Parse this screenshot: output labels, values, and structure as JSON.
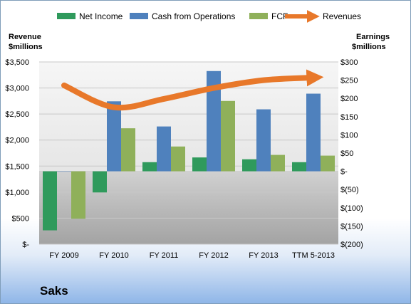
{
  "chart_data": {
    "type": "bar",
    "title": "Saks",
    "categories": [
      "FY 2009",
      "FY 2010",
      "FY 2011",
      "FY 2012",
      "FY 2013",
      "TTM 5-2013"
    ],
    "left_axis": {
      "label_lines": [
        "Revenue",
        "$millions"
      ],
      "ylim": [
        0,
        3500
      ],
      "ticks": [
        0,
        500,
        1000,
        1500,
        2000,
        2500,
        3000,
        3500
      ],
      "tick_labels": [
        "$-",
        "$500",
        "$1,000",
        "$1,500",
        "$2,000",
        "$2,500",
        "$3,000",
        "$3,500"
      ]
    },
    "right_axis": {
      "label_lines": [
        "Earnings",
        "$millions"
      ],
      "ylim": [
        -200,
        300
      ],
      "ticks": [
        -200,
        -150,
        -100,
        -50,
        0,
        50,
        100,
        150,
        200,
        250,
        300
      ],
      "tick_labels": [
        "$(200)",
        "$(150)",
        "$(100)",
        "$(50)",
        "$-",
        "$50",
        "$100",
        "$150",
        "$200",
        "$250",
        "$300"
      ]
    },
    "series": [
      {
        "name": "Net Income",
        "axis": "right",
        "kind": "bar",
        "color": "#2f9a5c",
        "values": [
          -162,
          -58,
          25,
          38,
          33,
          25
        ]
      },
      {
        "name": "Cash from Operations",
        "axis": "right",
        "kind": "bar",
        "color": "#4f81bd",
        "values": [
          0,
          192,
          123,
          275,
          170,
          213
        ]
      },
      {
        "name": "FCF",
        "axis": "right",
        "kind": "bar",
        "color": "#8fb05a",
        "values": [
          -130,
          118,
          68,
          193,
          45,
          43
        ]
      },
      {
        "name": "Revenues",
        "axis": "left",
        "kind": "line",
        "color": "#e8782a",
        "values": [
          3050,
          2630,
          2790,
          3000,
          3150,
          3200
        ]
      }
    ],
    "grid": true,
    "legend": "top"
  }
}
